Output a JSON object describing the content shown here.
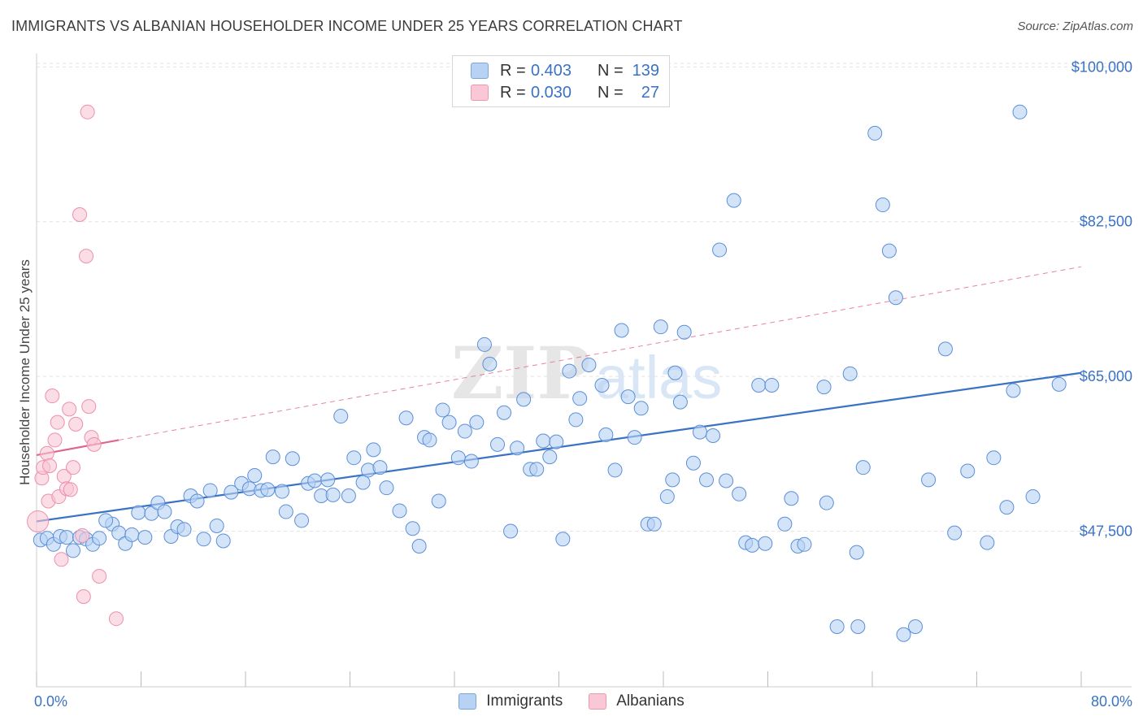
{
  "header": {
    "title": "IMMIGRANTS VS ALBANIAN HOUSEHOLDER INCOME UNDER 25 YEARS CORRELATION CHART",
    "source": "Source: ZipAtlas.com"
  },
  "watermark": {
    "part1": "ZIP",
    "part2": "atlas"
  },
  "legend": {
    "rows": [
      {
        "r_label": "R =",
        "r_value": "0.403",
        "n_label": "N =",
        "n_value": "139",
        "fill": "#b8d2f3",
        "stroke": "#7aa6e0"
      },
      {
        "r_label": "R =",
        "r_value": "0.030",
        "n_label": "N =",
        "n_value": "27",
        "fill": "#f9c7d5",
        "stroke": "#ee97b0"
      }
    ]
  },
  "bottom_legend": {
    "items": [
      "Immigrants",
      "Albanians"
    ]
  },
  "chart_data": {
    "type": "scatter",
    "title": "IMMIGRANTS VS ALBANIAN HOUSEHOLDER INCOME UNDER 25 YEARS CORRELATION CHART",
    "xlabel": "",
    "ylabel": "Householder Income Under 25 years",
    "xlim": [
      0,
      80
    ],
    "ylim": [
      31000,
      101500
    ],
    "x_tick_labels": [
      "0.0%",
      "80.0%"
    ],
    "y_ticks": [
      47500,
      65000,
      82500,
      100000
    ],
    "y_tick_labels": [
      "$47,500",
      "$65,000",
      "$82,500",
      "$100,000"
    ],
    "grid": "horizontal dashed",
    "legend_position": "top-center",
    "series": [
      {
        "name": "Immigrants",
        "color": "#5b8fd8",
        "fill": "#b8d2f3",
        "trend": {
          "x": [
            0,
            80
          ],
          "y": [
            48600,
            65400
          ],
          "style": "solid",
          "color": "#3a72c4"
        },
        "points": [
          [
            0.3,
            46500
          ],
          [
            0.8,
            46700
          ],
          [
            1.3,
            46000
          ],
          [
            1.8,
            46900
          ],
          [
            2.3,
            46800
          ],
          [
            2.8,
            45300
          ],
          [
            3.3,
            46800
          ],
          [
            3.8,
            46600
          ],
          [
            4.3,
            46000
          ],
          [
            4.8,
            46700
          ],
          [
            5.8,
            48300
          ],
          [
            5.3,
            48700
          ],
          [
            6.3,
            47300
          ],
          [
            6.8,
            46100
          ],
          [
            7.3,
            47100
          ],
          [
            7.8,
            49600
          ],
          [
            8.3,
            46800
          ],
          [
            8.8,
            49500
          ],
          [
            9.3,
            50700
          ],
          [
            9.8,
            49700
          ],
          [
            10.3,
            46900
          ],
          [
            10.8,
            48000
          ],
          [
            11.3,
            47700
          ],
          [
            11.8,
            51500
          ],
          [
            12.3,
            50900
          ],
          [
            12.8,
            46600
          ],
          [
            13.3,
            52100
          ],
          [
            13.8,
            48100
          ],
          [
            14.3,
            46400
          ],
          [
            14.9,
            51900
          ],
          [
            15.7,
            52900
          ],
          [
            16.3,
            52300
          ],
          [
            16.7,
            53800
          ],
          [
            17.2,
            52100
          ],
          [
            17.7,
            52200
          ],
          [
            18.1,
            55900
          ],
          [
            18.8,
            52000
          ],
          [
            19.1,
            49700
          ],
          [
            19.6,
            55700
          ],
          [
            20.3,
            48700
          ],
          [
            20.8,
            52900
          ],
          [
            21.3,
            53200
          ],
          [
            21.8,
            51500
          ],
          [
            22.3,
            53300
          ],
          [
            22.7,
            51600
          ],
          [
            23.3,
            60500
          ],
          [
            23.9,
            51500
          ],
          [
            24.3,
            55800
          ],
          [
            25.0,
            53000
          ],
          [
            25.4,
            54400
          ],
          [
            25.8,
            56700
          ],
          [
            26.3,
            54700
          ],
          [
            26.8,
            52400
          ],
          [
            27.8,
            49800
          ],
          [
            28.3,
            60300
          ],
          [
            28.8,
            47800
          ],
          [
            29.3,
            45800
          ],
          [
            29.7,
            58100
          ],
          [
            30.1,
            57800
          ],
          [
            30.8,
            50900
          ],
          [
            31.1,
            61200
          ],
          [
            31.6,
            59800
          ],
          [
            32.3,
            55800
          ],
          [
            32.8,
            58800
          ],
          [
            33.3,
            55400
          ],
          [
            33.7,
            59800
          ],
          [
            34.3,
            68600
          ],
          [
            34.7,
            66400
          ],
          [
            35.3,
            57300
          ],
          [
            35.8,
            60900
          ],
          [
            36.3,
            47500
          ],
          [
            36.8,
            56900
          ],
          [
            37.3,
            62400
          ],
          [
            37.8,
            54500
          ],
          [
            38.3,
            54500
          ],
          [
            38.8,
            57700
          ],
          [
            39.3,
            55900
          ],
          [
            39.8,
            57600
          ],
          [
            40.3,
            46600
          ],
          [
            40.8,
            65600
          ],
          [
            41.3,
            60100
          ],
          [
            41.6,
            62500
          ],
          [
            42.3,
            66300
          ],
          [
            43.3,
            64000
          ],
          [
            43.6,
            58400
          ],
          [
            44.3,
            54400
          ],
          [
            44.8,
            70200
          ],
          [
            45.3,
            62700
          ],
          [
            45.8,
            58100
          ],
          [
            46.3,
            61400
          ],
          [
            46.8,
            48300
          ],
          [
            47.3,
            48300
          ],
          [
            47.8,
            70600
          ],
          [
            48.3,
            51400
          ],
          [
            48.7,
            53300
          ],
          [
            48.9,
            65400
          ],
          [
            49.3,
            62100
          ],
          [
            49.6,
            70000
          ],
          [
            50.3,
            55200
          ],
          [
            50.8,
            58700
          ],
          [
            51.3,
            53300
          ],
          [
            51.8,
            58300
          ],
          [
            52.3,
            79300
          ],
          [
            52.8,
            53200
          ],
          [
            53.4,
            84900
          ],
          [
            53.8,
            51700
          ],
          [
            54.3,
            46200
          ],
          [
            54.8,
            45900
          ],
          [
            55.3,
            64000
          ],
          [
            55.8,
            46100
          ],
          [
            56.3,
            64000
          ],
          [
            57.3,
            48300
          ],
          [
            57.8,
            51200
          ],
          [
            58.3,
            45800
          ],
          [
            58.8,
            46000
          ],
          [
            60.3,
            63800
          ],
          [
            60.5,
            50700
          ],
          [
            61.3,
            36700
          ],
          [
            62.3,
            65300
          ],
          [
            62.8,
            45100
          ],
          [
            63.3,
            54700
          ],
          [
            64.2,
            92500
          ],
          [
            62.9,
            36700
          ],
          [
            64.8,
            84400
          ],
          [
            65.3,
            79200
          ],
          [
            65.8,
            73900
          ],
          [
            66.4,
            35800
          ],
          [
            67.3,
            36700
          ],
          [
            68.3,
            53300
          ],
          [
            69.6,
            68100
          ],
          [
            70.3,
            47300
          ],
          [
            71.3,
            54300
          ],
          [
            72.8,
            46200
          ],
          [
            73.3,
            55800
          ],
          [
            74.3,
            50200
          ],
          [
            74.8,
            63400
          ],
          [
            75.3,
            94900
          ],
          [
            76.3,
            51400
          ],
          [
            78.3,
            64100
          ]
        ]
      },
      {
        "name": "Albanians",
        "color": "#ee8fae",
        "fill": "#f9c7d5",
        "trend": {
          "x": [
            0,
            6.3
          ],
          "y": [
            56100,
            57800
          ],
          "style": "solid",
          "color": "#e0648d",
          "extension": {
            "x": [
              6.3,
              80
            ],
            "y": [
              57800,
              77400
            ],
            "style": "dashed"
          }
        },
        "points": [
          [
            0.1,
            48600
          ],
          [
            0.4,
            53500
          ],
          [
            0.5,
            54700
          ],
          [
            0.8,
            56300
          ],
          [
            0.9,
            50900
          ],
          [
            1.0,
            54900
          ],
          [
            1.2,
            62800
          ],
          [
            1.4,
            57800
          ],
          [
            1.6,
            59800
          ],
          [
            1.7,
            51400
          ],
          [
            1.9,
            44300
          ],
          [
            2.1,
            53700
          ],
          [
            2.3,
            52300
          ],
          [
            2.5,
            61300
          ],
          [
            2.8,
            54700
          ],
          [
            3.0,
            59600
          ],
          [
            3.3,
            83300
          ],
          [
            3.5,
            47000
          ],
          [
            3.6,
            40100
          ],
          [
            3.8,
            78600
          ],
          [
            4.0,
            61600
          ],
          [
            4.2,
            58100
          ],
          [
            4.4,
            57300
          ],
          [
            4.8,
            42400
          ],
          [
            3.9,
            94900
          ],
          [
            2.6,
            52200
          ],
          [
            6.1,
            37600
          ]
        ]
      }
    ]
  }
}
